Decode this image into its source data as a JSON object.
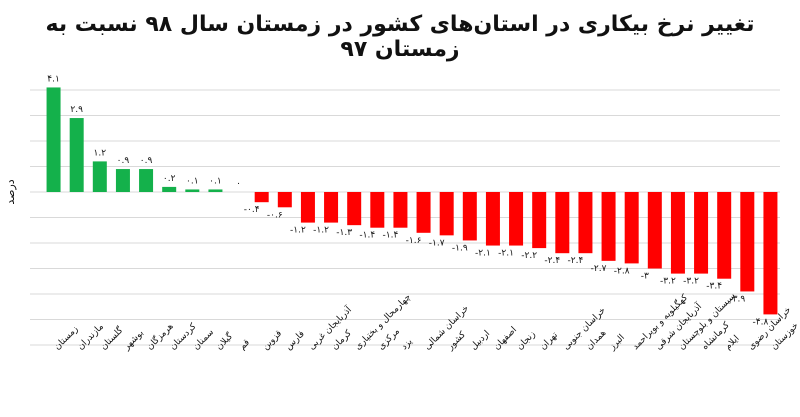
{
  "chart_data": {
    "type": "bar",
    "title": "تغییر نرخ بیکاری در استان‌های کشور در زمستان سال ۹۸ نسبت به زمستان ۹۷",
    "ylabel": "درصد",
    "categories": [
      "زمستان",
      "مازندران",
      "گلستان",
      "بوشهر",
      "هرمزگان",
      "کردستان",
      "سمنان",
      "گیلان",
      "قم",
      "قزوین",
      "فارس",
      "آذربایجان غربی",
      "کرمان",
      "چهارمحال و بختیاری",
      "مرکزی",
      "یزد",
      "خراسان شمالی",
      "کشور",
      "اردبیل",
      "اصفهان",
      "زنجان",
      "تهران",
      "خراسان جنوبی",
      "همدان",
      "البرز",
      "کهگیلویه و بویراحمد",
      "آذربایجان شرقی",
      "سیستان و بلوچستان",
      "کرمانشاه",
      "ایلام",
      "خراسان رضوی",
      "خوزستان"
    ],
    "values": [
      4.1,
      2.9,
      1.2,
      0.9,
      0.9,
      0.2,
      0.1,
      0.1,
      0,
      -0.4,
      -0.6,
      -1.2,
      -1.2,
      -1.3,
      -1.4,
      -1.4,
      -1.6,
      -1.7,
      -1.9,
      -2.1,
      -2.1,
      -2.2,
      -2.4,
      -2.4,
      -2.7,
      -2.8,
      -3,
      -3.2,
      -3.2,
      -3.4,
      -3.9,
      -4.8
    ],
    "value_labels": [
      "۴.۱",
      "۲.۹",
      "۱.۲",
      "۰.۹",
      "۰.۹",
      "۰.۲",
      "۰.۱",
      "۰.۱",
      "۰",
      "-۰.۴",
      "-۰.۶",
      "-۱.۲",
      "-۱.۲",
      "-۱.۳",
      "-۱.۴",
      "-۱.۴",
      "-۱.۶",
      "-۱.۷",
      "-۱.۹",
      "-۲.۱",
      "-۲.۱",
      "-۲.۲",
      "-۲.۴",
      "-۲.۴",
      "-۲.۷",
      "-۲.۸",
      "-۳",
      "-۳.۲",
      "-۳.۲",
      "-۳.۴",
      "-۳.۹",
      "-۴.۸"
    ],
    "ylim": [
      -6,
      4.5
    ],
    "grid": true,
    "legend": "none",
    "colors": {
      "positive": "#14b14b",
      "negative": "#ff0000",
      "grid": "#d9d9d9"
    }
  }
}
